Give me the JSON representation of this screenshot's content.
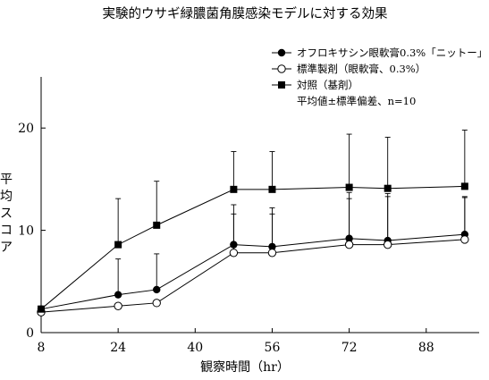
{
  "chart_data": {
    "type": "line",
    "title": "実験的ウサギ緑膿菌角膜感染モデルに対する効果",
    "xlabel": "観察時間（hr）",
    "ylabel": "平均スコア",
    "xlim": [
      8,
      99
    ],
    "ylim": [
      0,
      25
    ],
    "xticks": [
      8,
      24,
      40,
      56,
      72,
      88
    ],
    "yticks": [
      0,
      10,
      20
    ],
    "legend_position": "top-right",
    "legend_note": "平均値±標準偏差、n=10",
    "series": [
      {
        "name": "オフロキサシン眼軟膏0.3%「ニットー」",
        "marker": "filled-circle",
        "x": [
          8,
          24,
          32,
          48,
          56,
          72,
          80,
          96
        ],
        "y": [
          2.3,
          3.7,
          4.2,
          8.6,
          8.4,
          9.2,
          9.0,
          9.6
        ],
        "err": [
          0,
          3.5,
          3.5,
          3.9,
          3.8,
          4.5,
          4.6,
          3.6
        ]
      },
      {
        "name": "標準製剤（眼軟膏、0.3%）",
        "marker": "open-circle",
        "x": [
          8,
          24,
          32,
          48,
          56,
          72,
          80,
          96
        ],
        "y": [
          2.0,
          2.6,
          2.9,
          7.8,
          7.8,
          8.6,
          8.6,
          9.1
        ],
        "err": [
          0,
          0,
          0,
          3.8,
          3.8,
          4.5,
          4.7,
          4.2
        ]
      },
      {
        "name": "対照（基剤）",
        "marker": "filled-square",
        "x": [
          8,
          24,
          32,
          48,
          56,
          72,
          80,
          96
        ],
        "y": [
          2.3,
          8.6,
          10.5,
          14.0,
          14.0,
          14.2,
          14.1,
          14.3
        ],
        "err": [
          0,
          4.5,
          4.3,
          3.7,
          3.7,
          5.2,
          5.0,
          5.5
        ]
      }
    ]
  }
}
